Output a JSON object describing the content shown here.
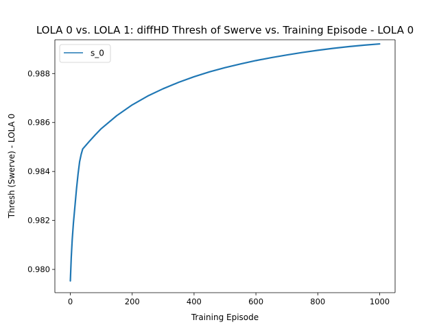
{
  "chart_data": {
    "type": "line",
    "title": "LOLA 0 vs. LOLA 1: diffHD Thresh of Swerve vs. Training Episode - LOLA 0",
    "xlabel": "Training Episode",
    "ylabel": "Thresh (Swerve) - LOLA 0",
    "xlim": [
      -50,
      1050
    ],
    "ylim": [
      0.97905,
      0.98938
    ],
    "xticks": [
      0,
      200,
      400,
      600,
      800,
      1000
    ],
    "yticks": [
      0.98,
      0.982,
      0.984,
      0.986,
      0.988
    ],
    "grid": false,
    "legend": {
      "position": "upper-left",
      "entries": [
        "s_0"
      ]
    },
    "series": [
      {
        "name": "s_0",
        "color": "#1f77b4",
        "x": [
          0,
          3,
          6,
          10,
          15,
          20,
          25,
          30,
          35,
          40,
          60,
          80,
          100,
          150,
          200,
          250,
          300,
          350,
          400,
          450,
          500,
          550,
          600,
          650,
          700,
          750,
          800,
          850,
          900,
          950,
          1000
        ],
        "y": [
          0.97953,
          0.9805,
          0.9812,
          0.9819,
          0.9826,
          0.9833,
          0.9839,
          0.9844,
          0.9847,
          0.98492,
          0.98521,
          0.98549,
          0.98575,
          0.98628,
          0.98672,
          0.98708,
          0.98738,
          0.98764,
          0.98787,
          0.98807,
          0.98824,
          0.98839,
          0.98853,
          0.98865,
          0.98876,
          0.98886,
          0.98895,
          0.98903,
          0.9891,
          0.98916,
          0.98921
        ]
      }
    ]
  }
}
